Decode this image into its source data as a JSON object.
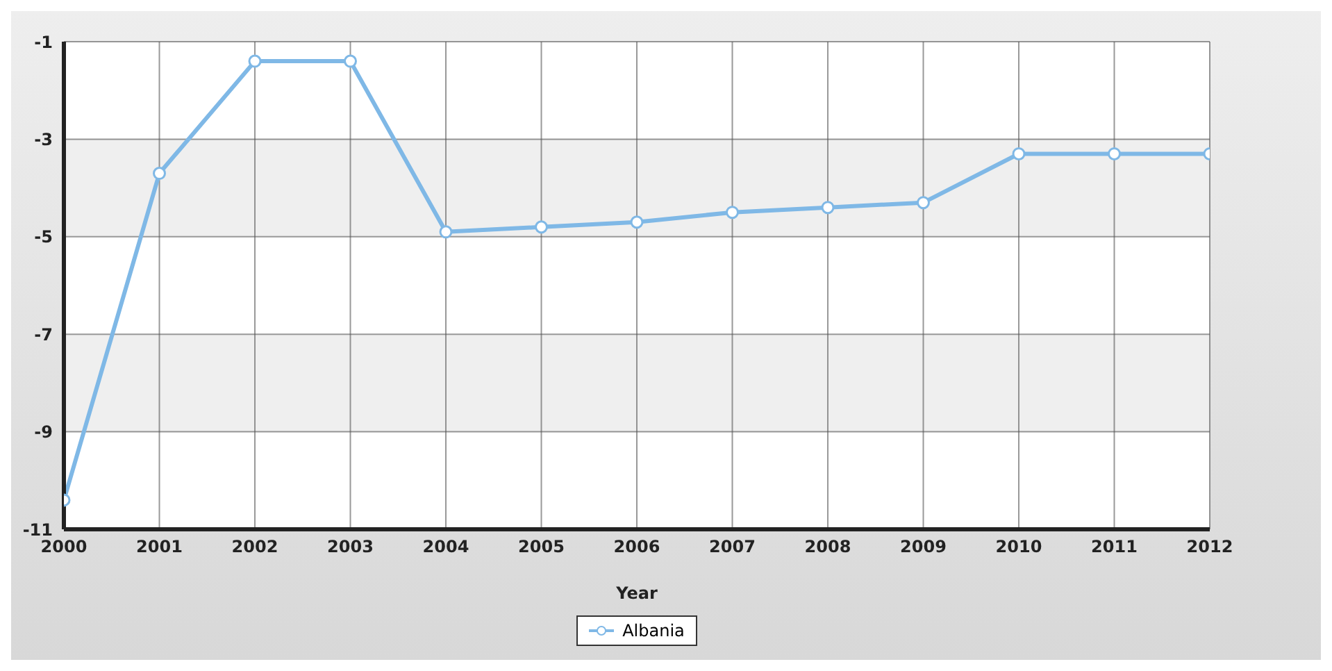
{
  "chart_data": {
    "type": "line",
    "xlabel": "Year",
    "x": [
      2000,
      2001,
      2002,
      2003,
      2004,
      2005,
      2006,
      2007,
      2008,
      2009,
      2010,
      2011,
      2012
    ],
    "series": [
      {
        "name": "Albania",
        "color": "#7fb8e6",
        "values": [
          -10.4,
          -3.7,
          -1.4,
          -1.4,
          -4.9,
          -4.8,
          -4.7,
          -4.5,
          -4.4,
          -4.3,
          -3.3,
          -3.3,
          -3.3
        ]
      }
    ],
    "xlim": [
      2000,
      2012
    ],
    "xticks": [
      2000,
      2001,
      2002,
      2003,
      2004,
      2005,
      2006,
      2007,
      2008,
      2009,
      2010,
      2011,
      2012
    ],
    "ylim": [
      -11,
      -1
    ],
    "yticks": [
      -11,
      -9,
      -7,
      -5,
      -3,
      -1
    ],
    "grid": true,
    "legend": "bottom",
    "marker": "circle",
    "line_style": "solid"
  }
}
